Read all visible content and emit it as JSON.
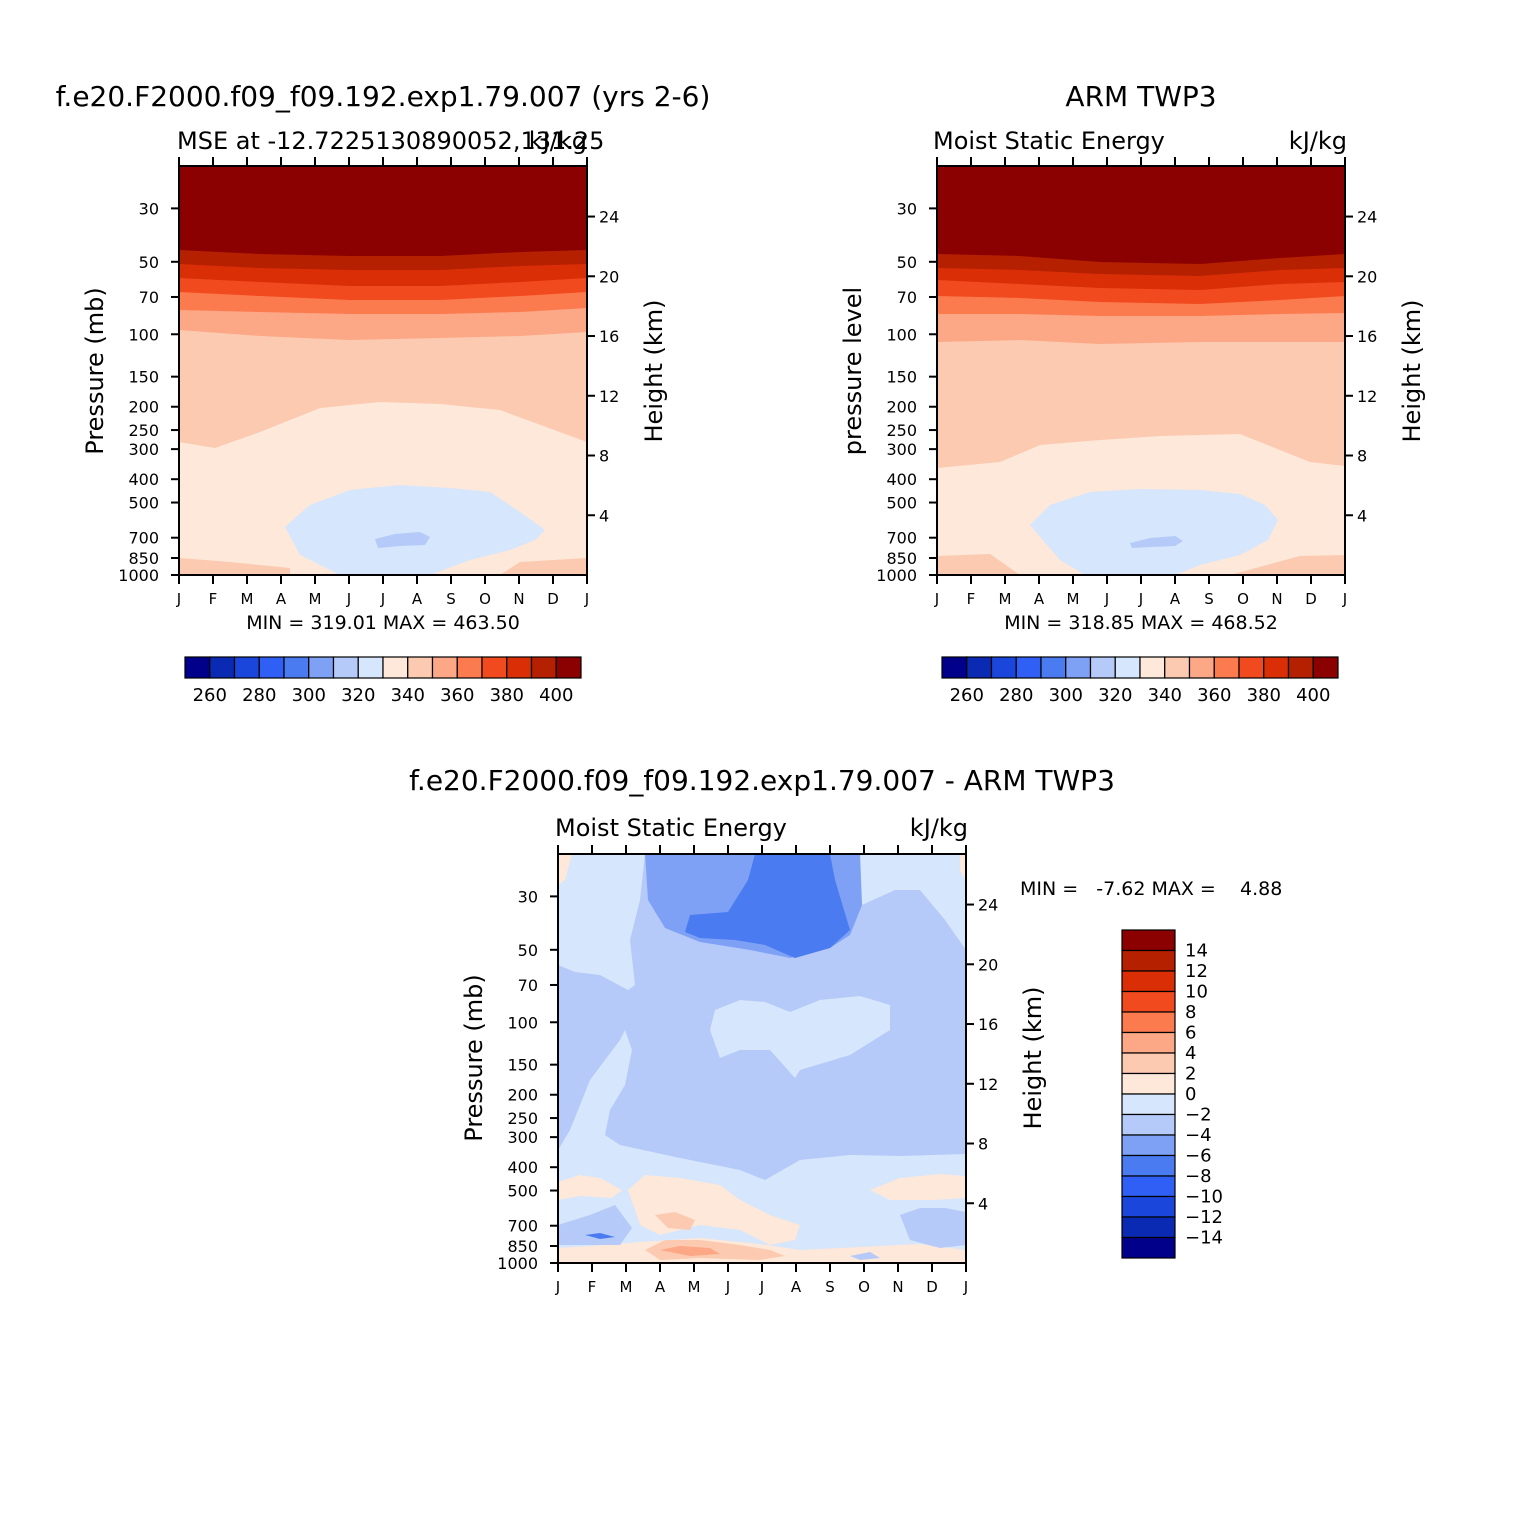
{
  "page": {
    "background": "#ffffff"
  },
  "chart_data": [
    {
      "type": "heatmap",
      "title": "f.e20.F2000.f09_f09.192.exp1.79.007 (yrs 2-6)",
      "subtitle_left": "MSE at -12.7225130890052,131.25",
      "subtitle_right": "kJ/kg",
      "ylabel": "Pressure (mb)",
      "ylabel_right": "Height (km)",
      "stats_text": "MIN = 319.01 MAX = 463.50",
      "min": 319.01,
      "max": 463.5,
      "x": [
        "J",
        "F",
        "M",
        "A",
        "M",
        "J",
        "J",
        "A",
        "S",
        "O",
        "N",
        "D",
        "J"
      ],
      "pressure_levels": [
        30,
        50,
        70,
        100,
        150,
        200,
        250,
        300,
        400,
        500,
        700,
        850,
        1000
      ],
      "height_ticks_km": [
        4,
        8,
        12,
        16,
        20,
        24
      ],
      "contour_levels": [
        260,
        270,
        280,
        290,
        300,
        310,
        320,
        330,
        340,
        350,
        360,
        370,
        380,
        390,
        400
      ],
      "colorbar_labels": [
        "260",
        "280",
        "300",
        "320",
        "340",
        "360",
        "380",
        "400"
      ],
      "colors": [
        "#00008b",
        "#0a2ab4",
        "#1b46dc",
        "#2f5ff5",
        "#4a7bf0",
        "#7ea1f6",
        "#b5caf8",
        "#d6e6fc",
        "#fde8d9",
        "#fccab0",
        "#fca786",
        "#fb7b4f",
        "#f04a1e",
        "#da2e07",
        "#b42000",
        "#8b0000"
      ]
    },
    {
      "type": "heatmap",
      "title": "ARM TWP3",
      "subtitle_left": "Moist Static Energy",
      "subtitle_right": "kJ/kg",
      "ylabel": "pressure level",
      "ylabel_right": "Height (km)",
      "stats_text": "MIN = 318.85 MAX = 468.52",
      "min": 318.85,
      "max": 468.52,
      "x": [
        "J",
        "F",
        "M",
        "A",
        "M",
        "J",
        "J",
        "A",
        "S",
        "O",
        "N",
        "D",
        "J"
      ],
      "pressure_levels": [
        30,
        50,
        70,
        100,
        150,
        200,
        250,
        300,
        400,
        500,
        700,
        850,
        1000
      ],
      "height_ticks_km": [
        4,
        8,
        12,
        16,
        20,
        24
      ],
      "contour_levels": [
        260,
        270,
        280,
        290,
        300,
        310,
        320,
        330,
        340,
        350,
        360,
        370,
        380,
        390,
        400
      ],
      "colorbar_labels": [
        "260",
        "280",
        "300",
        "320",
        "340",
        "360",
        "380",
        "400"
      ]
    },
    {
      "type": "heatmap",
      "title": "f.e20.F2000.f09_f09.192.exp1.79.007 - ARM TWP3",
      "subtitle_left": "Moist Static Energy",
      "subtitle_right": "kJ/kg",
      "ylabel": "Pressure (mb)",
      "ylabel_right": "Height (km)",
      "stats_text": "MIN =   -7.62 MAX =    4.88",
      "min": -7.62,
      "max": 4.88,
      "x": [
        "J",
        "F",
        "M",
        "A",
        "M",
        "J",
        "J",
        "A",
        "S",
        "O",
        "N",
        "D",
        "J"
      ],
      "pressure_levels": [
        30,
        50,
        70,
        100,
        150,
        200,
        250,
        300,
        400,
        500,
        700,
        850,
        1000
      ],
      "height_ticks_km": [
        4,
        8,
        12,
        16,
        20,
        24
      ],
      "contour_levels": [
        -14,
        -12,
        -10,
        -8,
        -6,
        -4,
        -2,
        0,
        2,
        4,
        6,
        8,
        10,
        12,
        14
      ],
      "colorbar_labels": [
        "14",
        "12",
        "10",
        "8",
        "6",
        "4",
        "2",
        "0",
        "−2",
        "−4",
        "−6",
        "−8",
        "−10",
        "−12",
        "−14"
      ],
      "colors": [
        "#8b0000",
        "#b42000",
        "#da2e07",
        "#f04a1e",
        "#fb7b4f",
        "#fca786",
        "#fccab0",
        "#fde8d9",
        "#d6e6fc",
        "#b5caf8",
        "#7ea1f6",
        "#4a7bf0",
        "#2f5ff5",
        "#1b46dc",
        "#0a2ab4",
        "#00008b"
      ]
    }
  ]
}
